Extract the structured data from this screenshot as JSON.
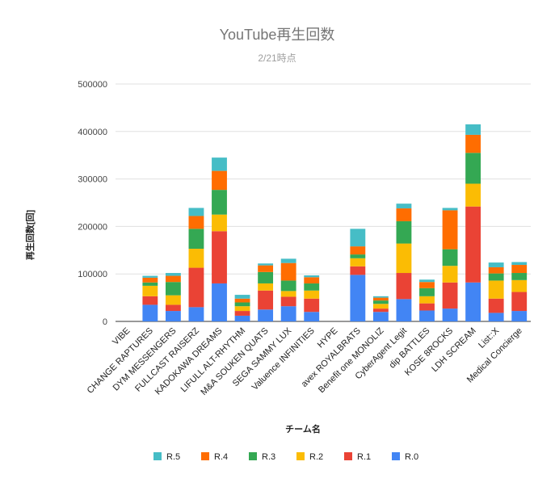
{
  "chart_data": {
    "type": "bar",
    "stacked": true,
    "title": "YouTube再生回数",
    "subtitle": "2/21時点",
    "xlabel": "チーム名",
    "ylabel": "再生回数[回]",
    "ylim": [
      0,
      500000
    ],
    "yticks": [
      0,
      100000,
      200000,
      300000,
      400000,
      500000
    ],
    "grid": true,
    "legend_position": "bottom",
    "categories": [
      "VIBE",
      "CHANGE RAPTURES",
      "DYM MESSENGERS",
      "FULLCAST RAISERZ",
      "KADOKAWA DREAMS",
      "LIFULL ALT-RHYTHM",
      "M&A SOUKEN QUATS",
      "SEGA SAMMY LUX",
      "Valuence INFINITIES",
      "HYPE",
      "avex ROYALBRATS",
      "Benefit one MONOLIZ",
      "CyberAgent Legit",
      "dip BATTLES",
      "KOSE 8ROCKS",
      "LDH SCREAM",
      "List::X",
      "Medical Concierge"
    ],
    "series": [
      {
        "name": "R.0",
        "color": "#4285f4",
        "values": [
          0,
          35000,
          22000,
          30000,
          80000,
          12000,
          25000,
          32000,
          20000,
          0,
          98000,
          20000,
          47000,
          23000,
          27000,
          82000,
          18000,
          22000
        ]
      },
      {
        "name": "R.1",
        "color": "#ea4335",
        "values": [
          0,
          18000,
          13000,
          83000,
          110000,
          10000,
          40000,
          20000,
          28000,
          0,
          18000,
          7000,
          55000,
          15000,
          55000,
          160000,
          30000,
          40000
        ]
      },
      {
        "name": "R.2",
        "color": "#fbbc04",
        "values": [
          0,
          22000,
          20000,
          40000,
          35000,
          10000,
          15000,
          12000,
          17000,
          0,
          17000,
          10000,
          62000,
          15000,
          35000,
          48000,
          38000,
          25000
        ]
      },
      {
        "name": "R.3",
        "color": "#34a853",
        "values": [
          0,
          7000,
          28000,
          42000,
          52000,
          8000,
          24000,
          22000,
          15000,
          0,
          8000,
          7000,
          47000,
          17000,
          35000,
          65000,
          15000,
          15000
        ]
      },
      {
        "name": "R.4",
        "color": "#ff6d01",
        "values": [
          0,
          10000,
          13000,
          27000,
          40000,
          8000,
          14000,
          37000,
          13000,
          0,
          17000,
          6000,
          27000,
          13000,
          82000,
          38000,
          13000,
          17000
        ]
      },
      {
        "name": "R.5",
        "color": "#46bdc6",
        "values": [
          0,
          4000,
          6000,
          17000,
          28000,
          8000,
          4000,
          9000,
          4000,
          0,
          37000,
          3000,
          10000,
          5000,
          5000,
          22000,
          10000,
          6000
        ]
      }
    ]
  }
}
